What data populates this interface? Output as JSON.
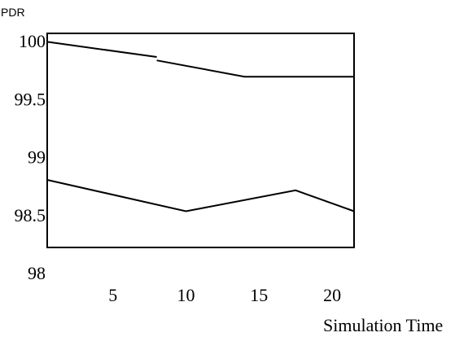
{
  "chart_data": {
    "type": "line",
    "title": "",
    "xlabel": "Simulation Time",
    "ylabel": "PDR",
    "xlim": [
      0.5,
      21.5
    ],
    "ylim": [
      98,
      100
    ],
    "x_ticks": [
      "5",
      "10",
      "15",
      "20"
    ],
    "y_ticks": [
      "100",
      "99.5",
      "99",
      "98.5",
      "98"
    ],
    "grid": false,
    "legend": "none",
    "series": [
      {
        "segments": [
          {
            "x": [
              0.5,
              8.0
            ],
            "y": [
              99.99,
              99.86
            ]
          },
          {
            "x": [
              8.0,
              14.0,
              21.5
            ],
            "y": [
              99.83,
              99.69,
              99.69
            ]
          }
        ]
      },
      {
        "segments": [
          {
            "x": [
              0.5,
              10.0,
              17.5,
              21.5
            ],
            "y": [
              98.8,
              98.53,
              98.71,
              98.53
            ]
          }
        ]
      }
    ]
  }
}
